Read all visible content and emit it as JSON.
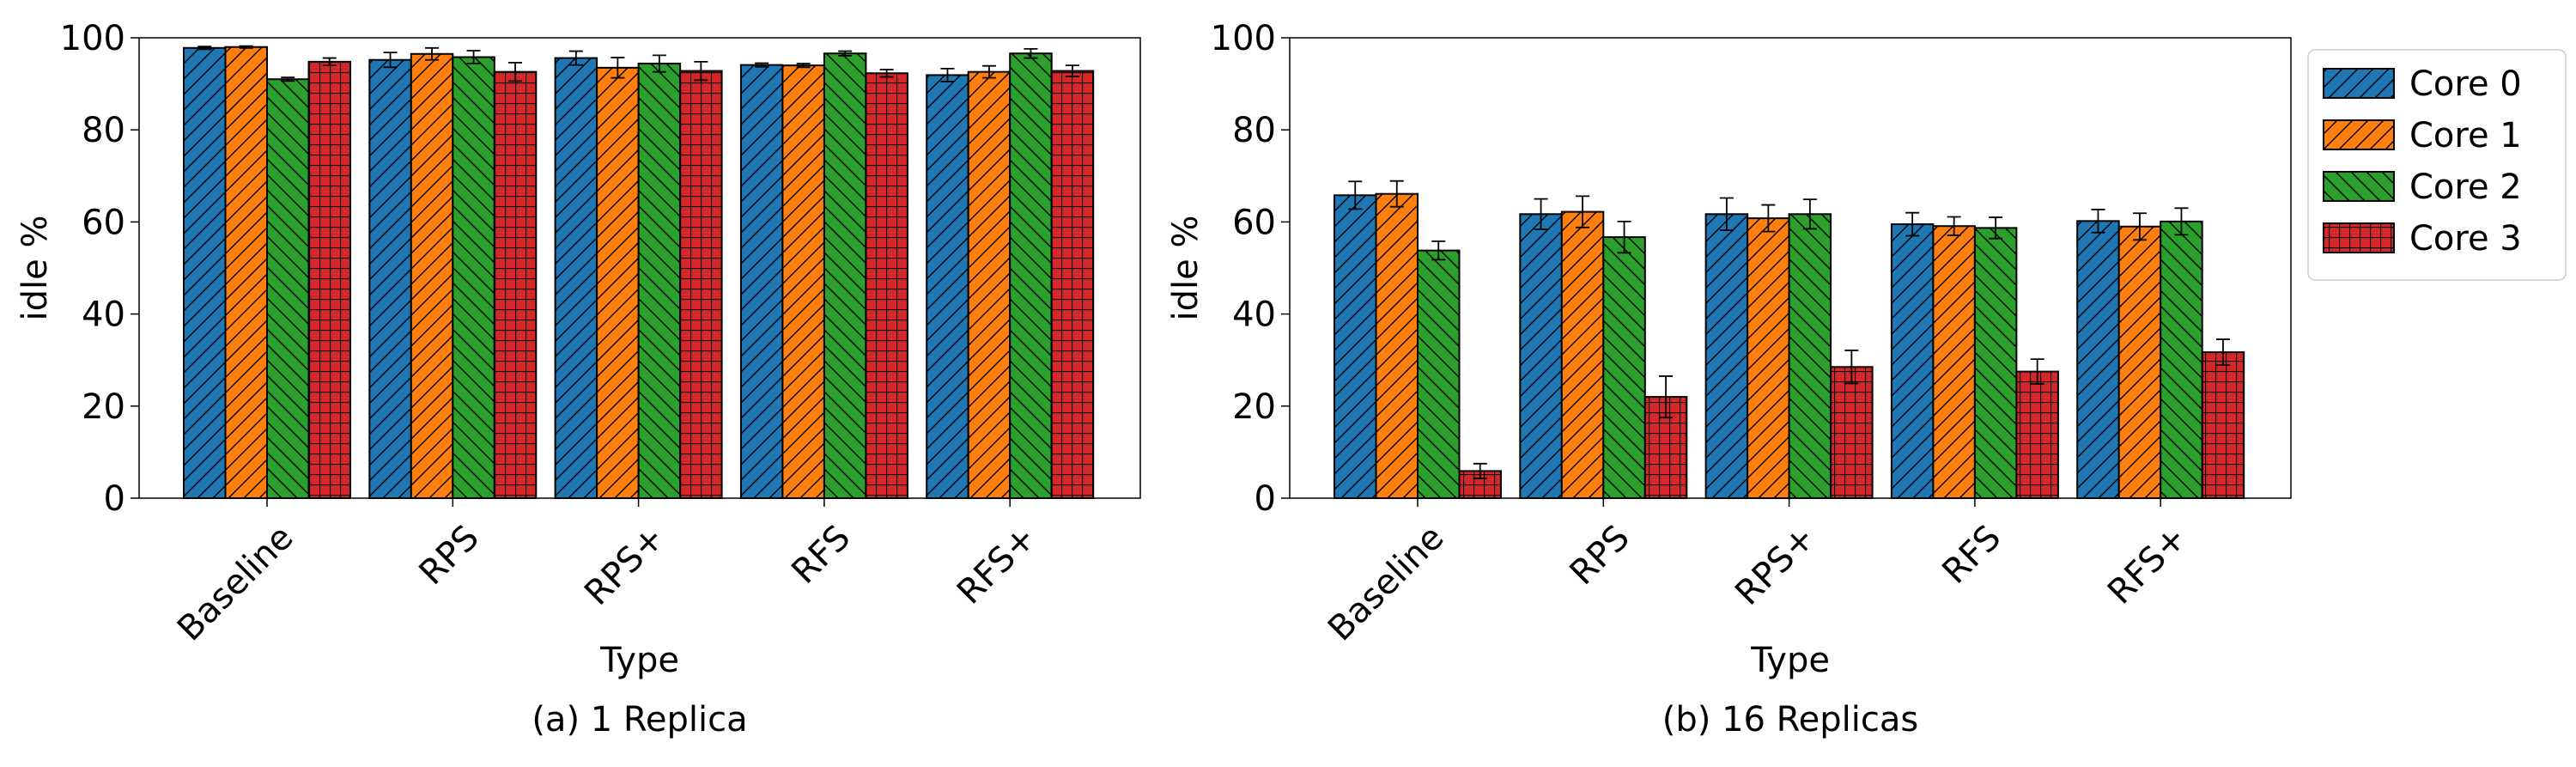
{
  "legend": {
    "placement": "outside-right",
    "entries": [
      "Core 0",
      "Core 1",
      "Core 2",
      "Core 3"
    ]
  },
  "series_style": [
    {
      "name": "Core 0",
      "color": "#1f77b4",
      "hatch": "diagonal-up"
    },
    {
      "name": "Core 1",
      "color": "#ff7f0e",
      "hatch": "diagonal-up"
    },
    {
      "name": "Core 2",
      "color": "#2ca02c",
      "hatch": "diagonal-down"
    },
    {
      "name": "Core 3",
      "color": "#d62728",
      "hatch": "grid"
    }
  ],
  "chart_data": [
    {
      "type": "bar",
      "caption": "(a) 1 Replica",
      "xlabel": "Type",
      "ylabel": "idle %",
      "ylim": [
        0,
        100
      ],
      "yticks": [
        0,
        20,
        40,
        60,
        80,
        100
      ],
      "grid": false,
      "categories": [
        "Baseline",
        "RPS",
        "RPS+",
        "RFS",
        "RFS+"
      ],
      "series": [
        {
          "name": "Core 0",
          "values": [
            97.8,
            95.2,
            95.6,
            94.1,
            91.9
          ],
          "errors": [
            0.3,
            1.6,
            1.5,
            0.4,
            1.4
          ]
        },
        {
          "name": "Core 1",
          "values": [
            98.0,
            96.5,
            93.5,
            94.0,
            92.6
          ],
          "errors": [
            0.2,
            1.3,
            2.2,
            0.4,
            1.3
          ]
        },
        {
          "name": "Core 2",
          "values": [
            91.0,
            95.8,
            94.4,
            96.6,
            96.6
          ],
          "errors": [
            0.4,
            1.4,
            1.8,
            0.5,
            1.0
          ]
        },
        {
          "name": "Core 3",
          "values": [
            94.8,
            92.6,
            92.8,
            92.3,
            92.8
          ],
          "errors": [
            0.8,
            2.0,
            2.0,
            0.8,
            1.2
          ]
        }
      ]
    },
    {
      "type": "bar",
      "caption": "(b) 16 Replicas",
      "xlabel": "Type",
      "ylabel": "idle %",
      "ylim": [
        0,
        100
      ],
      "yticks": [
        0,
        20,
        40,
        60,
        80,
        100
      ],
      "grid": false,
      "categories": [
        "Baseline",
        "RPS",
        "RPS+",
        "RFS",
        "RFS+"
      ],
      "series": [
        {
          "name": "Core 0",
          "values": [
            65.8,
            61.7,
            61.7,
            59.5,
            60.2
          ],
          "errors": [
            3.0,
            3.3,
            3.5,
            2.5,
            2.5
          ]
        },
        {
          "name": "Core 1",
          "values": [
            66.1,
            62.2,
            60.8,
            59.1,
            59.0
          ],
          "errors": [
            2.8,
            3.4,
            2.9,
            2.0,
            2.9
          ]
        },
        {
          "name": "Core 2",
          "values": [
            53.8,
            56.7,
            61.7,
            58.7,
            60.1
          ],
          "errors": [
            2.0,
            3.4,
            3.2,
            2.3,
            2.9
          ]
        },
        {
          "name": "Core 3",
          "values": [
            5.9,
            22.0,
            28.5,
            27.5,
            31.7
          ],
          "errors": [
            1.6,
            4.5,
            3.6,
            2.7,
            2.8
          ]
        }
      ]
    }
  ]
}
